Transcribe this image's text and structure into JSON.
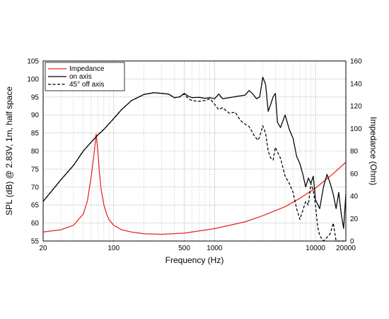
{
  "chart_data": {
    "type": "line",
    "x_scale": "log",
    "xlabel": "Frequency (Hz)",
    "ylabel_left": "SPL (dB) @ 2.83V, 1m, half space",
    "ylabel_right": "Impedance (Ohm)",
    "xlim": [
      20,
      20000
    ],
    "ylim_left": [
      55,
      105
    ],
    "ylim_right": [
      0,
      160
    ],
    "grid": true,
    "legend_position": "top-left",
    "x_ticks": [
      {
        "value": 20,
        "label": "20"
      },
      {
        "value": 100,
        "label": "100"
      },
      {
        "value": 500,
        "label": "500"
      },
      {
        "value": 1000,
        "label": "1000"
      },
      {
        "value": 10000,
        "label": "10000"
      },
      {
        "value": 20000,
        "label": "20000"
      }
    ],
    "y_ticks_left": [
      "55",
      "60",
      "65",
      "70",
      "75",
      "80",
      "85",
      "90",
      "95",
      "100",
      "105"
    ],
    "y_ticks_right": [
      "0",
      "20",
      "40",
      "60",
      "80",
      "100",
      "120",
      "140",
      "160"
    ],
    "series": [
      {
        "name": "Impedance",
        "axis": "right",
        "color": "#e8231f",
        "dash": "solid",
        "x": [
          20,
          30,
          40,
          50,
          55,
          60,
          64,
          67,
          70,
          72,
          75,
          80,
          85,
          90,
          100,
          120,
          150,
          200,
          300,
          500,
          1000,
          2000,
          3000,
          5000,
          7000,
          10000,
          15000,
          20000
        ],
        "y": [
          8,
          10,
          14,
          24,
          36,
          58,
          78,
          95,
          78,
          62,
          46,
          32,
          24,
          19,
          14,
          10,
          8,
          6.5,
          6,
          7,
          11,
          17,
          22.5,
          30.5,
          38,
          47,
          60,
          70
        ]
      },
      {
        "name": "on axis",
        "axis": "left",
        "color": "#000000",
        "dash": "solid",
        "x": [
          20,
          30,
          40,
          50,
          60,
          70,
          80,
          100,
          120,
          150,
          200,
          250,
          300,
          350,
          400,
          450,
          500,
          550,
          600,
          700,
          800,
          900,
          1000,
          1100,
          1200,
          1400,
          1700,
          2000,
          2200,
          2400,
          2600,
          2800,
          3000,
          3200,
          3400,
          3600,
          3800,
          4000,
          4200,
          4500,
          5000,
          5500,
          6000,
          6500,
          7000,
          7500,
          8000,
          8500,
          9000,
          9500,
          10000,
          11000,
          12000,
          13000,
          14000,
          15000,
          16000,
          17000,
          18000,
          19000,
          20000
        ],
        "y": [
          66,
          72,
          76,
          80,
          82.5,
          84.5,
          86,
          89,
          91.5,
          94,
          95.7,
          96.2,
          96,
          95.8,
          94.8,
          95,
          96,
          95.2,
          94.8,
          94.9,
          94.6,
          94.8,
          94.5,
          95.8,
          94.5,
          94.8,
          95.2,
          95.5,
          96.8,
          95.8,
          94.5,
          95,
          100.5,
          98.5,
          91,
          93,
          95,
          96,
          88,
          86.5,
          90,
          86,
          83.5,
          78.5,
          76.5,
          73.5,
          70,
          72.5,
          71,
          73,
          66.5,
          64,
          70,
          73.5,
          71,
          68,
          64,
          68.5,
          62.5,
          58.5,
          68
        ]
      },
      {
        "name": "45° off axis",
        "axis": "left",
        "color": "#000000",
        "dash": "dashed",
        "x": [
          20,
          30,
          40,
          50,
          60,
          70,
          80,
          100,
          120,
          150,
          200,
          250,
          300,
          350,
          400,
          450,
          500,
          550,
          600,
          700,
          800,
          900,
          1000,
          1100,
          1200,
          1400,
          1600,
          1800,
          2000,
          2200,
          2500,
          2700,
          2800,
          3000,
          3200,
          3400,
          3600,
          3800,
          4000,
          4500,
          5000,
          5500,
          6000,
          6500,
          7000,
          7500,
          8000,
          8500,
          9000,
          9500,
          10000,
          10500,
          11000,
          12000,
          13000,
          14000,
          15000,
          16000,
          17000,
          18000,
          19000,
          20000
        ],
        "y": [
          66,
          72,
          76,
          80,
          82.5,
          84.5,
          86,
          89,
          91.5,
          94,
          95.7,
          96.2,
          96,
          95.8,
          94.8,
          95,
          95.8,
          94.5,
          94,
          93.8,
          94,
          94.5,
          93,
          91.5,
          92,
          90.5,
          90.8,
          88.5,
          87.5,
          86.8,
          84,
          83,
          84,
          87,
          85,
          80,
          78,
          77.5,
          81,
          78,
          73,
          71,
          68.5,
          64,
          61,
          63.5,
          66,
          65,
          71,
          69,
          65,
          59,
          56.5,
          55,
          56,
          57,
          60,
          55,
          55,
          55,
          55,
          55
        ]
      }
    ]
  }
}
